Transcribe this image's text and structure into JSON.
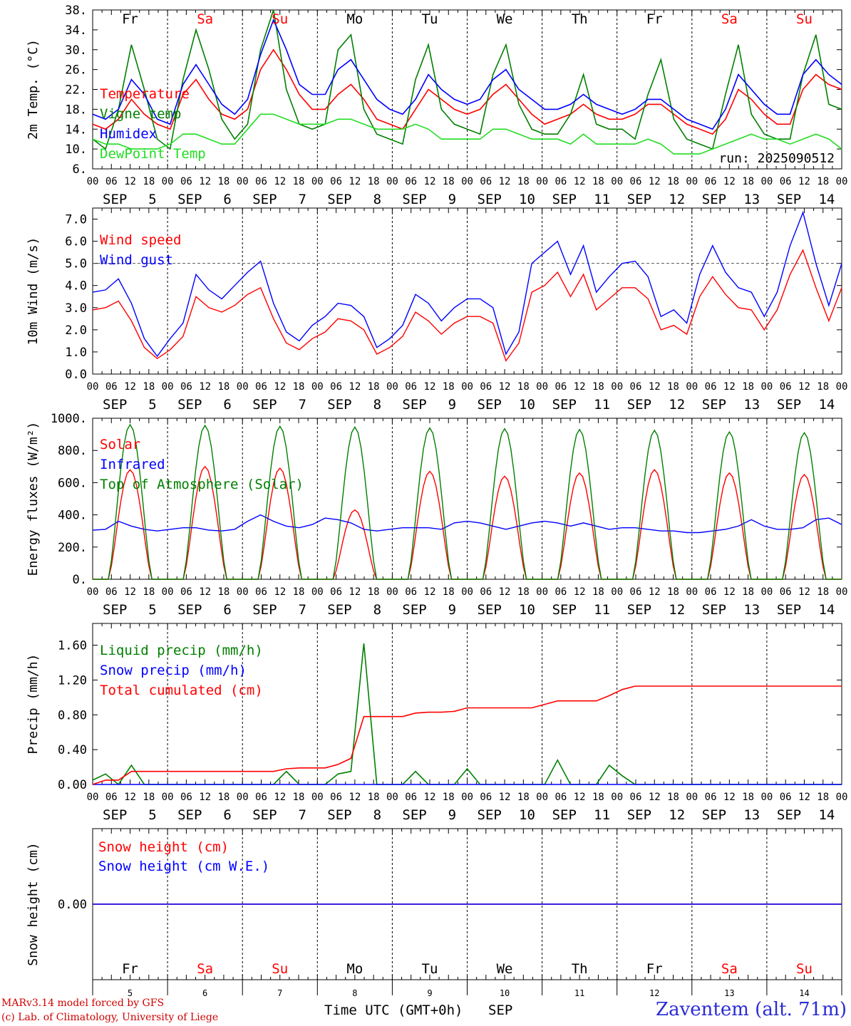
{
  "run_label": "run: 2025090512",
  "days": [
    {
      "day": "5",
      "month": "SEP",
      "dow": "Fr",
      "weekend": false
    },
    {
      "day": "6",
      "month": "SEP",
      "dow": "Sa",
      "weekend": true
    },
    {
      "day": "7",
      "month": "SEP",
      "dow": "Su",
      "weekend": true
    },
    {
      "day": "8",
      "month": "SEP",
      "dow": "Mo",
      "weekend": false
    },
    {
      "day": "9",
      "month": "SEP",
      "dow": "Tu",
      "weekend": false
    },
    {
      "day": "10",
      "month": "SEP",
      "dow": "We",
      "weekend": false
    },
    {
      "day": "11",
      "month": "SEP",
      "dow": "Th",
      "weekend": false
    },
    {
      "day": "12",
      "month": "SEP",
      "dow": "Fr",
      "weekend": false
    },
    {
      "day": "13",
      "month": "SEP",
      "dow": "Sa",
      "weekend": true
    },
    {
      "day": "14",
      "month": "SEP",
      "dow": "Su",
      "weekend": true
    }
  ],
  "hour_ticks": [
    "00",
    "06",
    "12",
    "18"
  ],
  "final_tick": "00",
  "time_axis_label": "Time UTC (GMT+0h)",
  "time_axis_month": "SEP",
  "credits": [
    "MARv3.14 model forced by GFS",
    "(c) Lab. of Climatology, University of Liege"
  ],
  "station": "Zaventem (alt. 71m)",
  "colors": {
    "red": "#ff0000",
    "green": "#008000",
    "blue": "#0000ff",
    "lightgreen": "#22dd22",
    "weekend": "#ff0000",
    "grey": "#555555"
  },
  "chart_data": [
    {
      "type": "line",
      "ylabel": "2m Temp. (°C)",
      "ylim": [
        6,
        38
      ],
      "yticks": [
        "6.",
        "10.",
        "14.",
        "18.",
        "22.",
        "26.",
        "30.",
        "34.",
        "38."
      ],
      "x_unit": "hours since 2025-09-05 00 UTC (6-hourly)",
      "series": [
        {
          "name": "Temperature",
          "color": "#ff0000",
          "values": [
            15,
            14,
            16,
            20,
            17,
            15,
            14,
            21,
            24,
            20,
            17,
            16,
            18,
            26,
            30,
            26,
            21,
            18,
            18,
            21,
            23,
            20,
            16,
            15,
            14,
            18,
            22,
            20,
            18,
            17,
            18,
            21,
            23,
            20,
            17,
            15,
            16,
            17,
            19,
            17,
            16,
            16,
            17,
            19,
            19,
            17,
            15,
            14,
            13,
            16,
            22,
            20,
            17,
            15,
            15,
            22,
            25,
            23,
            22
          ]
        },
        {
          "name": "Vigne temp",
          "color": "#008000",
          "values": [
            12,
            10,
            18,
            31,
            22,
            12,
            10,
            24,
            34,
            26,
            16,
            12,
            15,
            30,
            38,
            22,
            15,
            14,
            15,
            30,
            33,
            18,
            13,
            12,
            11,
            24,
            31,
            18,
            15,
            14,
            13,
            25,
            31,
            19,
            14,
            13,
            13,
            17,
            25,
            15,
            14,
            14,
            12,
            21,
            28,
            16,
            12,
            11,
            10,
            21,
            31,
            17,
            13,
            12,
            12,
            25,
            33,
            19,
            18
          ]
        },
        {
          "name": "Humidex",
          "color": "#0000ff",
          "values": [
            17,
            16,
            18,
            24,
            21,
            16,
            15,
            23,
            27,
            23,
            19,
            17,
            20,
            29,
            36,
            30,
            23,
            21,
            21,
            26,
            28,
            24,
            20,
            18,
            17,
            20,
            25,
            22,
            20,
            19,
            20,
            24,
            26,
            22,
            20,
            18,
            18,
            19,
            21,
            19,
            18,
            17,
            18,
            20,
            20,
            18,
            16,
            15,
            14,
            18,
            25,
            22,
            19,
            17,
            17,
            25,
            28,
            25,
            23
          ]
        },
        {
          "name": "DewPoint Temp",
          "color": "#22dd22",
          "values": [
            12,
            11,
            11,
            10,
            10,
            10,
            11,
            13,
            13,
            12,
            11,
            11,
            14,
            17,
            17,
            16,
            15,
            15,
            15,
            16,
            16,
            15,
            14,
            14,
            14,
            15,
            14,
            12,
            12,
            12,
            12,
            14,
            14,
            13,
            12,
            12,
            12,
            11,
            13,
            11,
            11,
            11,
            11,
            12,
            11,
            9,
            9,
            9,
            10,
            11,
            12,
            13,
            12,
            12,
            11,
            12,
            13,
            12,
            10
          ]
        }
      ],
      "annotation": "run: 2025090512"
    },
    {
      "type": "line",
      "ylabel": "10m Wind (m/s)",
      "ylim": [
        0,
        7.5
      ],
      "yticks": [
        "0.0",
        "1.0",
        "2.0",
        "3.0",
        "4.0",
        "5.0",
        "6.0",
        "7.0"
      ],
      "reference_line": 5.0,
      "series": [
        {
          "name": "Wind speed",
          "color": "#ff0000",
          "values": [
            2.9,
            3.0,
            3.3,
            2.4,
            1.2,
            0.7,
            1.1,
            1.7,
            3.5,
            3.0,
            2.8,
            3.1,
            3.6,
            3.9,
            2.5,
            1.4,
            1.1,
            1.6,
            1.9,
            2.5,
            2.4,
            2.0,
            0.9,
            1.2,
            1.7,
            2.8,
            2.4,
            1.8,
            2.3,
            2.6,
            2.6,
            2.3,
            0.6,
            1.4,
            3.7,
            4.0,
            4.6,
            3.5,
            4.5,
            2.9,
            3.4,
            3.9,
            3.9,
            3.4,
            2.0,
            2.2,
            1.8,
            3.5,
            4.4,
            3.6,
            3.0,
            2.9,
            2.0,
            2.9,
            4.5,
            5.6,
            3.9,
            2.4,
            3.9
          ]
        },
        {
          "name": "Wind gust",
          "color": "#0000ff",
          "values": [
            3.7,
            3.8,
            4.3,
            3.2,
            1.6,
            0.8,
            1.6,
            2.3,
            4.5,
            3.8,
            3.4,
            4.0,
            4.6,
            5.1,
            3.2,
            1.9,
            1.5,
            2.2,
            2.6,
            3.2,
            3.1,
            2.6,
            1.2,
            1.6,
            2.2,
            3.6,
            3.2,
            2.4,
            3.0,
            3.4,
            3.4,
            3.0,
            0.9,
            1.9,
            5.0,
            5.5,
            6.0,
            4.5,
            5.8,
            3.7,
            4.4,
            5.0,
            5.1,
            4.4,
            2.6,
            2.9,
            2.3,
            4.5,
            5.8,
            4.6,
            3.9,
            3.7,
            2.6,
            3.7,
            5.8,
            7.3,
            5.0,
            3.1,
            5.0
          ]
        }
      ]
    },
    {
      "type": "line",
      "ylabel": "Energy fluxes (W/m²)",
      "ylim": [
        0,
        1000
      ],
      "yticks": [
        "0.",
        "200.",
        "400.",
        "600.",
        "800.",
        "1000."
      ],
      "series": [
        {
          "name": "Solar",
          "color": "#ff0000",
          "peaks": [
            680,
            700,
            690,
            430,
            670,
            640,
            660,
            680,
            660,
            650
          ]
        },
        {
          "name": "Infrared",
          "color": "#0000ff",
          "values": [
            305,
            310,
            360,
            330,
            310,
            300,
            310,
            320,
            320,
            305,
            300,
            310,
            360,
            400,
            360,
            330,
            320,
            340,
            380,
            370,
            350,
            310,
            300,
            310,
            320,
            320,
            320,
            310,
            350,
            360,
            350,
            330,
            310,
            330,
            350,
            360,
            350,
            330,
            350,
            330,
            310,
            320,
            320,
            310,
            300,
            300,
            290,
            290,
            300,
            310,
            330,
            370,
            330,
            310,
            310,
            320,
            370,
            380,
            340
          ]
        },
        {
          "name": "Top of Atmosphere (Solar)",
          "color": "#008000",
          "peaks": [
            960,
            955,
            950,
            945,
            940,
            935,
            930,
            925,
            915,
            910
          ]
        }
      ]
    },
    {
      "type": "line",
      "ylabel": "Precip (mm/h)",
      "ylim": [
        0,
        1.85
      ],
      "yticks": [
        "0.00",
        "0.40",
        "0.80",
        "1.20",
        "1.60"
      ],
      "series": [
        {
          "name": "Liquid precip (mm/h)",
          "color": "#008000",
          "values": [
            0.05,
            0.12,
            0.0,
            0.22,
            0.0,
            0.0,
            0.0,
            0.0,
            0.0,
            0.0,
            0.0,
            0.0,
            0.0,
            0.0,
            0.0,
            0.15,
            0.0,
            0.0,
            0.0,
            0.12,
            0.15,
            1.62,
            0.0,
            0.0,
            0.0,
            0.15,
            0.0,
            0.0,
            0.0,
            0.18,
            0.0,
            0.0,
            0.0,
            0.0,
            0.0,
            0.0,
            0.28,
            0.0,
            0.0,
            0.0,
            0.22,
            0.1,
            0.0,
            0.0,
            0.0,
            0.0,
            0.0,
            0.0,
            0.0,
            0.0,
            0.0,
            0.0,
            0.0,
            0.0,
            0.0,
            0.0,
            0.0,
            0.0,
            0.0
          ]
        },
        {
          "name": "Snow precip (mm/h)",
          "color": "#0000ff",
          "values": [
            0,
            0,
            0,
            0,
            0,
            0,
            0,
            0,
            0,
            0,
            0,
            0,
            0,
            0,
            0,
            0,
            0,
            0,
            0,
            0,
            0,
            0,
            0,
            0,
            0,
            0,
            0,
            0,
            0,
            0,
            0,
            0,
            0,
            0,
            0,
            0,
            0,
            0,
            0,
            0,
            0,
            0,
            0,
            0,
            0,
            0,
            0,
            0,
            0,
            0,
            0,
            0,
            0,
            0,
            0,
            0,
            0,
            0,
            0
          ]
        },
        {
          "name": "Total cumulated (cm)",
          "color": "#ff0000",
          "values": [
            0.0,
            0.05,
            0.05,
            0.15,
            0.15,
            0.15,
            0.15,
            0.15,
            0.15,
            0.15,
            0.15,
            0.15,
            0.15,
            0.15,
            0.15,
            0.18,
            0.19,
            0.19,
            0.19,
            0.23,
            0.3,
            0.78,
            0.78,
            0.78,
            0.78,
            0.82,
            0.83,
            0.83,
            0.84,
            0.88,
            0.88,
            0.88,
            0.88,
            0.88,
            0.88,
            0.92,
            0.96,
            0.96,
            0.96,
            0.96,
            1.02,
            1.09,
            1.13,
            1.13,
            1.13,
            1.13,
            1.13,
            1.13,
            1.13,
            1.13,
            1.13,
            1.13,
            1.13,
            1.13,
            1.13,
            1.13,
            1.13,
            1.13,
            1.13
          ]
        }
      ]
    },
    {
      "type": "line",
      "ylabel": "Snow height (cm)",
      "yticks": [
        "0.00"
      ],
      "series": [
        {
          "name": "Snow height (cm)",
          "color": "#ff0000",
          "values": [
            0,
            0
          ]
        },
        {
          "name": "Snow height (cm W.E.)",
          "color": "#0000ff",
          "values": [
            0,
            0
          ]
        }
      ]
    }
  ]
}
